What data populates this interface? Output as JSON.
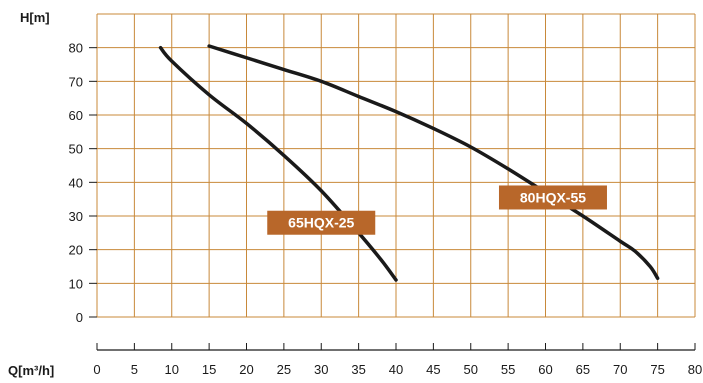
{
  "chart_data": {
    "type": "line",
    "title": "",
    "xlabel": "Q[m³/h]",
    "ylabel": "H[m]",
    "xlim": [
      0,
      80
    ],
    "ylim": [
      0,
      90
    ],
    "x_ticks": [
      "0",
      "5",
      "10",
      "15",
      "20",
      "25",
      "30",
      "35",
      "40",
      "45",
      "50",
      "55",
      "60",
      "65",
      "70",
      "75",
      "80"
    ],
    "y_ticks": [
      "0",
      "10",
      "20",
      "30",
      "40",
      "50",
      "60",
      "70",
      "80"
    ],
    "grid": true,
    "grid_color": "#c8893a",
    "line_color": "#1a1a1a",
    "label_bg_color": "#b8672a",
    "series": [
      {
        "name": "65HQX-25",
        "label_at": [
          30,
          28
        ],
        "points": [
          [
            8.5,
            80
          ],
          [
            10,
            76
          ],
          [
            15,
            66
          ],
          [
            20,
            57.5
          ],
          [
            25,
            48
          ],
          [
            30,
            37.5
          ],
          [
            35,
            25
          ],
          [
            38,
            17
          ],
          [
            40,
            11
          ]
        ]
      },
      {
        "name": "80HQX-55",
        "label_at": [
          61,
          35.5
        ],
        "points": [
          [
            15,
            80.5
          ],
          [
            20,
            77
          ],
          [
            25,
            73.5
          ],
          [
            30,
            70
          ],
          [
            35,
            65.5
          ],
          [
            40,
            61
          ],
          [
            45,
            56
          ],
          [
            50,
            50.5
          ],
          [
            55,
            44
          ],
          [
            60,
            37
          ],
          [
            65,
            30
          ],
          [
            70,
            22.5
          ],
          [
            72,
            19.5
          ],
          [
            74,
            15
          ],
          [
            75,
            11.5
          ]
        ]
      }
    ]
  }
}
